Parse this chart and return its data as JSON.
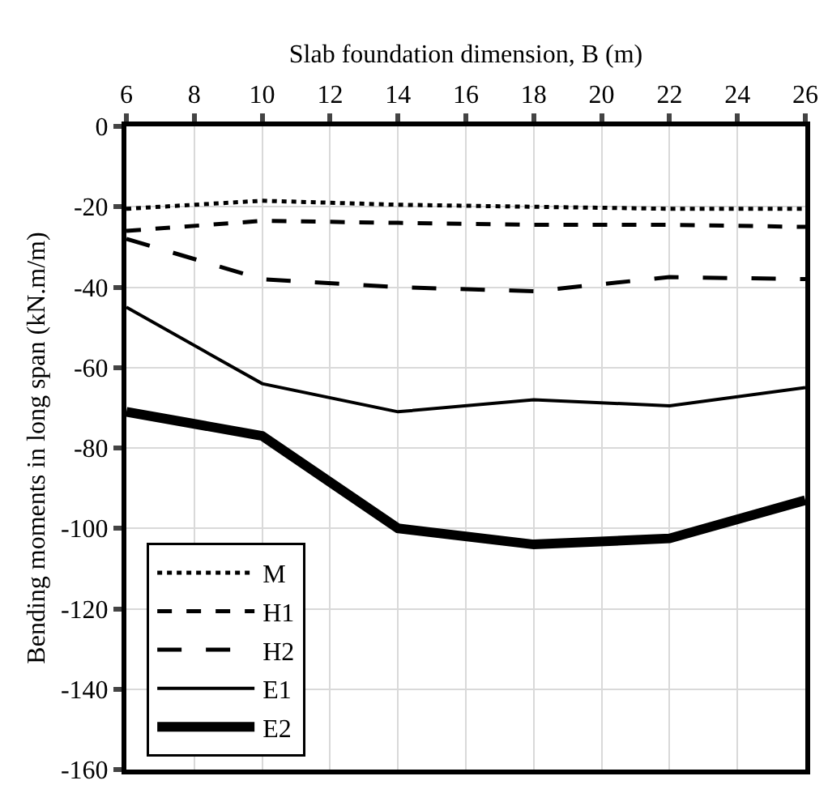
{
  "chart_data": {
    "type": "line",
    "xlabel": "Slab foundation dimension, B (m)",
    "ylabel": "Bending moments in long span (kN.m/m)",
    "x": [
      6,
      10,
      14,
      18,
      22,
      26
    ],
    "series": [
      {
        "name": "M",
        "color": "#000000",
        "line_style": "dotted",
        "values": [
          -20.5,
          -18.5,
          -19.5,
          -20,
          -20.5,
          -20.5
        ]
      },
      {
        "name": "H1",
        "color": "#000000",
        "line_style": "dashed",
        "values": [
          -26,
          -23.5,
          -24,
          -24.5,
          -24.5,
          -25
        ]
      },
      {
        "name": "H2",
        "color": "#000000",
        "line_style": "longdash",
        "values": [
          -28,
          -38,
          -40,
          -41,
          -37.5,
          -38
        ]
      },
      {
        "name": "E1",
        "color": "#000000",
        "line_style": "solid",
        "values": [
          -45,
          -64,
          -71,
          -68,
          -69.5,
          -65
        ]
      },
      {
        "name": "E2",
        "color": "#000000",
        "line_style": "solid",
        "values": [
          -71,
          -77,
          -100,
          -104,
          -102.5,
          -93
        ]
      }
    ],
    "xlim": [
      6,
      26
    ],
    "xticks": [
      6,
      8,
      10,
      12,
      14,
      16,
      18,
      20,
      22,
      24,
      26
    ],
    "ylim": [
      -160,
      0
    ],
    "yticks": [
      -160,
      -140,
      -120,
      -100,
      -80,
      -60,
      -40,
      -20,
      0
    ],
    "grid": true,
    "legend": "bottom left",
    "marker": "none"
  }
}
